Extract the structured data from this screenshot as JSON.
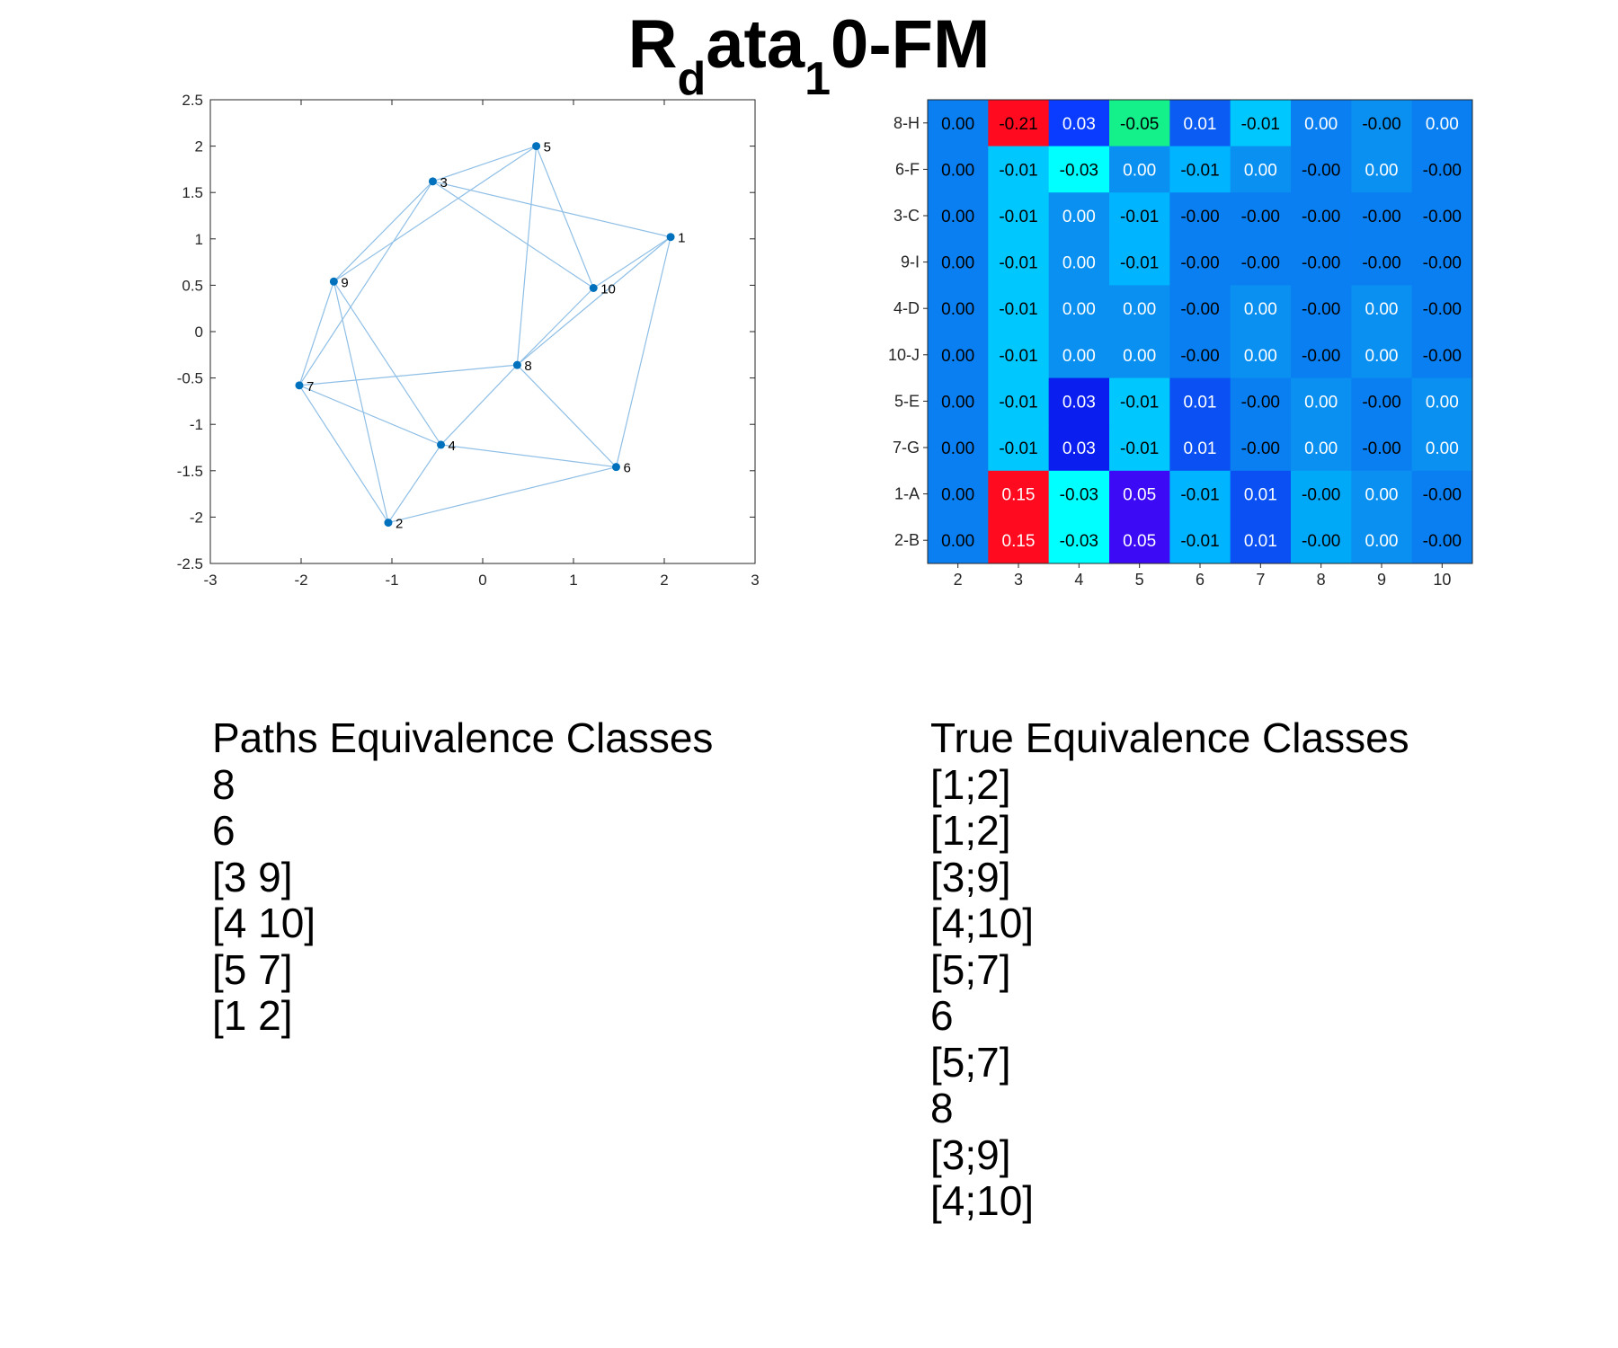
{
  "title": {
    "main": "R",
    "sub1": "d",
    "mid": "ata",
    "sub2": "1",
    "tail": "0-FM"
  },
  "chart_data": [
    {
      "type": "scatter",
      "title": "",
      "xlabel": "",
      "ylabel": "",
      "xlim": [
        -3,
        3
      ],
      "ylim": [
        -2.5,
        2.5
      ],
      "xticks": [
        -3,
        -2,
        -1,
        0,
        1,
        2,
        3
      ],
      "yticks": [
        -2.5,
        -2,
        -1.5,
        -1,
        -0.5,
        0,
        0.5,
        1,
        1.5,
        2,
        2.5
      ],
      "tick_labels_x": [
        "-3",
        "-2",
        "-1",
        "0",
        "1",
        "2",
        "3"
      ],
      "tick_labels_y": [
        "-2.5",
        "-2",
        "-1.5",
        "-1",
        "-0.5",
        "0",
        "0.5",
        "1",
        "1.5",
        "2",
        "2.5"
      ],
      "grid": false,
      "point_color": "#0072bd",
      "edge_color": "#8fbfe6",
      "nodes": [
        {
          "label": "1",
          "x": 2.07,
          "y": 1.02
        },
        {
          "label": "2",
          "x": -1.04,
          "y": -2.06
        },
        {
          "label": "3",
          "x": -0.55,
          "y": 1.62
        },
        {
          "label": "4",
          "x": -0.46,
          "y": -1.22
        },
        {
          "label": "5",
          "x": 0.59,
          "y": 2.0
        },
        {
          "label": "6",
          "x": 1.47,
          "y": -1.46
        },
        {
          "label": "7",
          "x": -2.02,
          "y": -0.58
        },
        {
          "label": "8",
          "x": 0.38,
          "y": -0.36
        },
        {
          "label": "9",
          "x": -1.64,
          "y": 0.54
        },
        {
          "label": "10",
          "x": 1.22,
          "y": 0.47
        }
      ],
      "edges": [
        [
          "3",
          "5"
        ],
        [
          "3",
          "1"
        ],
        [
          "3",
          "10"
        ],
        [
          "3",
          "9"
        ],
        [
          "3",
          "7"
        ],
        [
          "5",
          "9"
        ],
        [
          "5",
          "10"
        ],
        [
          "5",
          "8"
        ],
        [
          "1",
          "10"
        ],
        [
          "1",
          "8"
        ],
        [
          "1",
          "6"
        ],
        [
          "10",
          "8"
        ],
        [
          "8",
          "7"
        ],
        [
          "8",
          "4"
        ],
        [
          "8",
          "6"
        ],
        [
          "7",
          "9"
        ],
        [
          "7",
          "4"
        ],
        [
          "7",
          "2"
        ],
        [
          "9",
          "4"
        ],
        [
          "9",
          "2"
        ],
        [
          "4",
          "2"
        ],
        [
          "4",
          "6"
        ],
        [
          "2",
          "6"
        ]
      ]
    },
    {
      "type": "heatmap",
      "title": "",
      "xlabel": "",
      "ylabel": "",
      "columns": [
        "2",
        "3",
        "4",
        "5",
        "6",
        "7",
        "8",
        "9",
        "10"
      ],
      "rows": [
        "8-H",
        "6-F",
        "3-C",
        "9-I",
        "4-D",
        "10-J",
        "5-E",
        "7-G",
        "1-A",
        "2-B"
      ],
      "values": [
        [
          "0.00",
          "-0.21",
          "0.03",
          "-0.05",
          "0.01",
          "-0.01",
          "0.00",
          "-0.00",
          "0.00"
        ],
        [
          "0.00",
          "-0.01",
          "-0.03",
          "0.00",
          "-0.01",
          "0.00",
          "-0.00",
          "0.00",
          "-0.00"
        ],
        [
          "0.00",
          "-0.01",
          "0.00",
          "-0.01",
          "-0.00",
          "-0.00",
          "-0.00",
          "-0.00",
          "-0.00"
        ],
        [
          "0.00",
          "-0.01",
          "0.00",
          "-0.01",
          "-0.00",
          "-0.00",
          "-0.00",
          "-0.00",
          "-0.00"
        ],
        [
          "0.00",
          "-0.01",
          "0.00",
          "0.00",
          "-0.00",
          "0.00",
          "-0.00",
          "0.00",
          "-0.00"
        ],
        [
          "0.00",
          "-0.01",
          "0.00",
          "0.00",
          "-0.00",
          "0.00",
          "-0.00",
          "0.00",
          "-0.00"
        ],
        [
          "0.00",
          "-0.01",
          "0.03",
          "-0.01",
          "0.01",
          "-0.00",
          "0.00",
          "-0.00",
          "0.00"
        ],
        [
          "0.00",
          "-0.01",
          "0.03",
          "-0.01",
          "0.01",
          "-0.00",
          "0.00",
          "-0.00",
          "0.00"
        ],
        [
          "0.00",
          "0.15",
          "-0.03",
          "0.05",
          "-0.01",
          "0.01",
          "-0.00",
          "0.00",
          "-0.00"
        ],
        [
          "0.00",
          "0.15",
          "-0.03",
          "0.05",
          "-0.01",
          "0.01",
          "-0.00",
          "0.00",
          "-0.00"
        ]
      ],
      "cell_colors": [
        [
          "#0a7ff2",
          "#ff0a1e",
          "#0a3cff",
          "#14f08a",
          "#0a5cf2",
          "#00c8ff",
          "#0a7ff2",
          "#0a90f0",
          "#0a7ff2"
        ],
        [
          "#0a7ff2",
          "#00c8ff",
          "#00ffff",
          "#0a90f0",
          "#00b4ff",
          "#0a90f0",
          "#0a7ff2",
          "#0a90f0",
          "#0a7ff2"
        ],
        [
          "#0a7ff2",
          "#00c8ff",
          "#0a90f0",
          "#00b4ff",
          "#0a7ff2",
          "#0a7ff2",
          "#0a7ff2",
          "#0a7ff2",
          "#0a7ff2"
        ],
        [
          "#0a7ff2",
          "#00c8ff",
          "#0a90f0",
          "#00b4ff",
          "#0a7ff2",
          "#0a7ff2",
          "#0a7ff2",
          "#0a7ff2",
          "#0a7ff2"
        ],
        [
          "#0a7ff2",
          "#00c8ff",
          "#0a90f0",
          "#0a90f0",
          "#0a7ff2",
          "#0a90f0",
          "#0a7ff2",
          "#0a90f0",
          "#0a7ff2"
        ],
        [
          "#0a7ff2",
          "#00c8ff",
          "#0a90f0",
          "#0a90f0",
          "#0a7ff2",
          "#0a90f0",
          "#0a7ff2",
          "#0a90f0",
          "#0a7ff2"
        ],
        [
          "#0a7ff2",
          "#00c8ff",
          "#0a1ef0",
          "#00c8ff",
          "#0a50f2",
          "#0a7ff2",
          "#0a90f0",
          "#0a7ff2",
          "#0a90f0"
        ],
        [
          "#0a7ff2",
          "#00c8ff",
          "#0a1ef0",
          "#00c8ff",
          "#0a50f2",
          "#0a7ff2",
          "#0a90f0",
          "#0a7ff2",
          "#0a90f0"
        ],
        [
          "#0a7ff2",
          "#ff0a1e",
          "#00ffff",
          "#3c0af5",
          "#00b4ff",
          "#0a50f2",
          "#00a8f8",
          "#0a90f0",
          "#0a7ff2"
        ],
        [
          "#0a7ff2",
          "#ff0a1e",
          "#00ffff",
          "#3c0af5",
          "#00b4ff",
          "#0a50f2",
          "#00a8f8",
          "#0a90f0",
          "#0a7ff2"
        ]
      ],
      "text_colors": [
        [
          "#000",
          "#000",
          "#fff",
          "#000",
          "#fff",
          "#000",
          "#fff",
          "#000",
          "#fff"
        ],
        [
          "#000",
          "#000",
          "#000",
          "#fff",
          "#000",
          "#fff",
          "#000",
          "#fff",
          "#000"
        ],
        [
          "#000",
          "#000",
          "#fff",
          "#000",
          "#000",
          "#000",
          "#000",
          "#000",
          "#000"
        ],
        [
          "#000",
          "#000",
          "#fff",
          "#000",
          "#000",
          "#000",
          "#000",
          "#000",
          "#000"
        ],
        [
          "#000",
          "#000",
          "#fff",
          "#fff",
          "#000",
          "#fff",
          "#000",
          "#fff",
          "#000"
        ],
        [
          "#000",
          "#000",
          "#fff",
          "#fff",
          "#000",
          "#fff",
          "#000",
          "#fff",
          "#000"
        ],
        [
          "#000",
          "#000",
          "#fff",
          "#000",
          "#fff",
          "#000",
          "#fff",
          "#000",
          "#fff"
        ],
        [
          "#000",
          "#000",
          "#fff",
          "#000",
          "#fff",
          "#000",
          "#fff",
          "#000",
          "#fff"
        ],
        [
          "#000",
          "#fff",
          "#000",
          "#fff",
          "#000",
          "#fff",
          "#000",
          "#fff",
          "#000"
        ],
        [
          "#000",
          "#fff",
          "#000",
          "#fff",
          "#000",
          "#fff",
          "#000",
          "#fff",
          "#000"
        ]
      ]
    }
  ],
  "paths_list": {
    "header": "Paths Equivalence Classes",
    "items": [
      "8",
      "6",
      "[3 9]",
      "[4 10]",
      "[5 7]",
      "[1 2]"
    ]
  },
  "true_list": {
    "header": "True Equivalence Classes",
    "items": [
      "[1;2]",
      "[1;2]",
      "[3;9]",
      "[4;10]",
      "[5;7]",
      "6",
      "[5;7]",
      "8",
      "[3;9]",
      "[4;10]"
    ]
  }
}
